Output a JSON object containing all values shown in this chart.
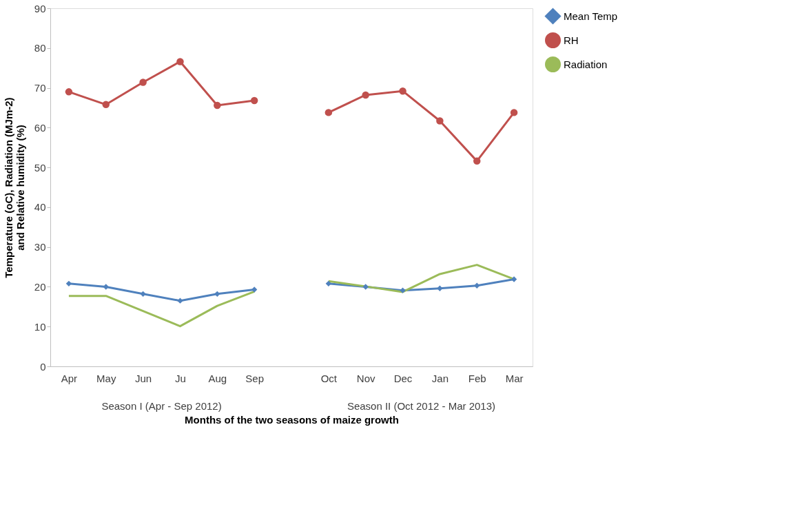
{
  "chart_data": {
    "type": "line",
    "xlabel": "Months of the two seasons of maize growth",
    "ylabel": "Temperature (oC), Radiation (MJm-2) and Relative humidity (%)",
    "categories": [
      "Apr",
      "May",
      "Jun",
      "Ju",
      "Aug",
      "Sep",
      null,
      "Oct",
      "Nov",
      "Dec",
      "Jan",
      "Feb",
      "Mar"
    ],
    "series": [
      {
        "name": "Mean Temp",
        "color": "#4f81bd",
        "marker": "diamond",
        "values": [
          20.8,
          20.0,
          18.2,
          16.5,
          18.2,
          19.3,
          null,
          20.8,
          20.0,
          19.1,
          19.6,
          20.3,
          21.9
        ]
      },
      {
        "name": "RH",
        "color": "#c0504d",
        "marker": "circle",
        "values": [
          69.0,
          65.8,
          71.4,
          76.6,
          65.6,
          66.8,
          null,
          63.8,
          68.2,
          69.2,
          61.7,
          51.6,
          63.8
        ]
      },
      {
        "name": "Radiation",
        "color": "#9bbb59",
        "marker": "none",
        "values": [
          17.7,
          17.7,
          13.9,
          10.1,
          15.2,
          18.8,
          null,
          21.4,
          20.1,
          18.7,
          23.2,
          25.5,
          21.9
        ]
      }
    ],
    "annotations": [
      "Season I (Apr - Sep 2012)",
      "Season II (Oct 2012 - Mar 2013)"
    ],
    "ylim": [
      0,
      90
    ],
    "yticks": [
      0,
      10,
      20,
      30,
      40,
      50,
      60,
      70,
      80,
      90
    ],
    "grid": false,
    "legend": "right",
    "line_style": "solid"
  }
}
